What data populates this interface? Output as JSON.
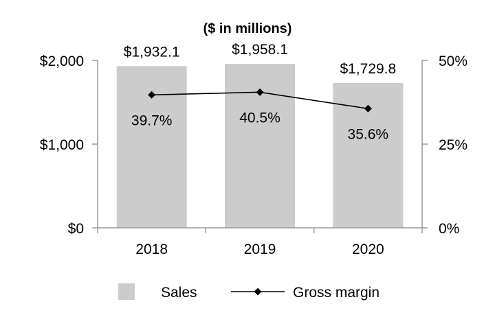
{
  "chart_data": {
    "type": "bar",
    "title": "($ in millions)",
    "categories": [
      "2018",
      "2019",
      "2020"
    ],
    "series": [
      {
        "name": "Sales",
        "kind": "bar",
        "axis": "left",
        "color": "#cccccc",
        "values": [
          1932.1,
          1958.1,
          1729.8
        ],
        "labels": [
          "$1,932.1",
          "$1,958.1",
          "$1,729.8"
        ]
      },
      {
        "name": "Gross margin",
        "kind": "line",
        "axis": "right",
        "color": "#000000",
        "values": [
          39.7,
          40.5,
          35.6
        ],
        "labels": [
          "39.7%",
          "40.5%",
          "35.6%"
        ]
      }
    ],
    "y_left": {
      "ylim": [
        0,
        2000
      ],
      "ticks": [
        0,
        1000,
        2000
      ],
      "tick_labels": [
        "$0",
        "$1,000",
        "$2,000"
      ]
    },
    "y_right": {
      "ylim": [
        0,
        50
      ],
      "ticks": [
        0,
        25,
        50
      ],
      "tick_labels": [
        "0%",
        "25%",
        "50%"
      ]
    },
    "xlabel": "",
    "ylabel": "",
    "grid": false,
    "legend": {
      "placement": "bottom",
      "entries": [
        "Sales",
        "Gross margin"
      ]
    },
    "axis_color": "#999999"
  }
}
